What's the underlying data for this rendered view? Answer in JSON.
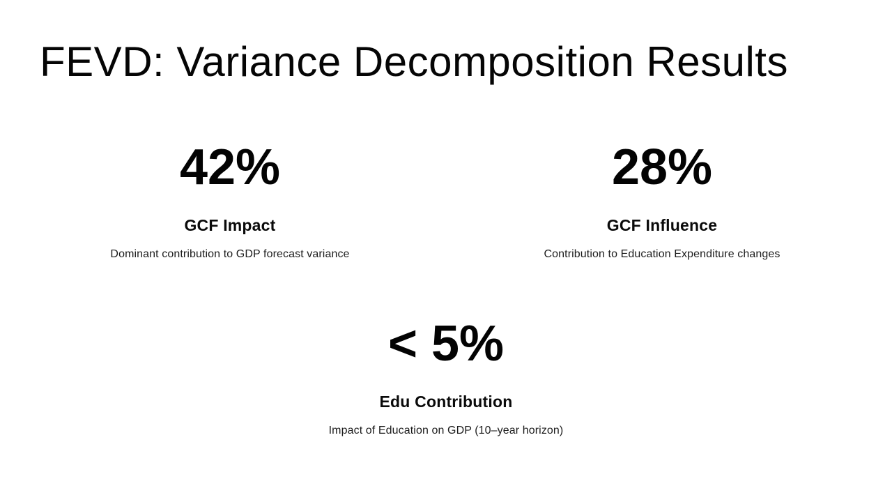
{
  "slide": {
    "title": "FEVD: Variance Decomposition Results",
    "stats": [
      {
        "value": "42%",
        "label": "GCF Impact",
        "description": "Dominant contribution to GDP forecast variance"
      },
      {
        "value": "28%",
        "label": "GCF Influence",
        "description": "Contribution to Education Expenditure changes"
      },
      {
        "value": "< 5%",
        "label": "Edu Contribution",
        "description": "Impact of Education on GDP (10–year horizon)"
      }
    ],
    "colors": {
      "background": "#ffffff",
      "title_text": "#050505",
      "stat_text": "#030303",
      "description_text": "#1c1c1c"
    }
  }
}
